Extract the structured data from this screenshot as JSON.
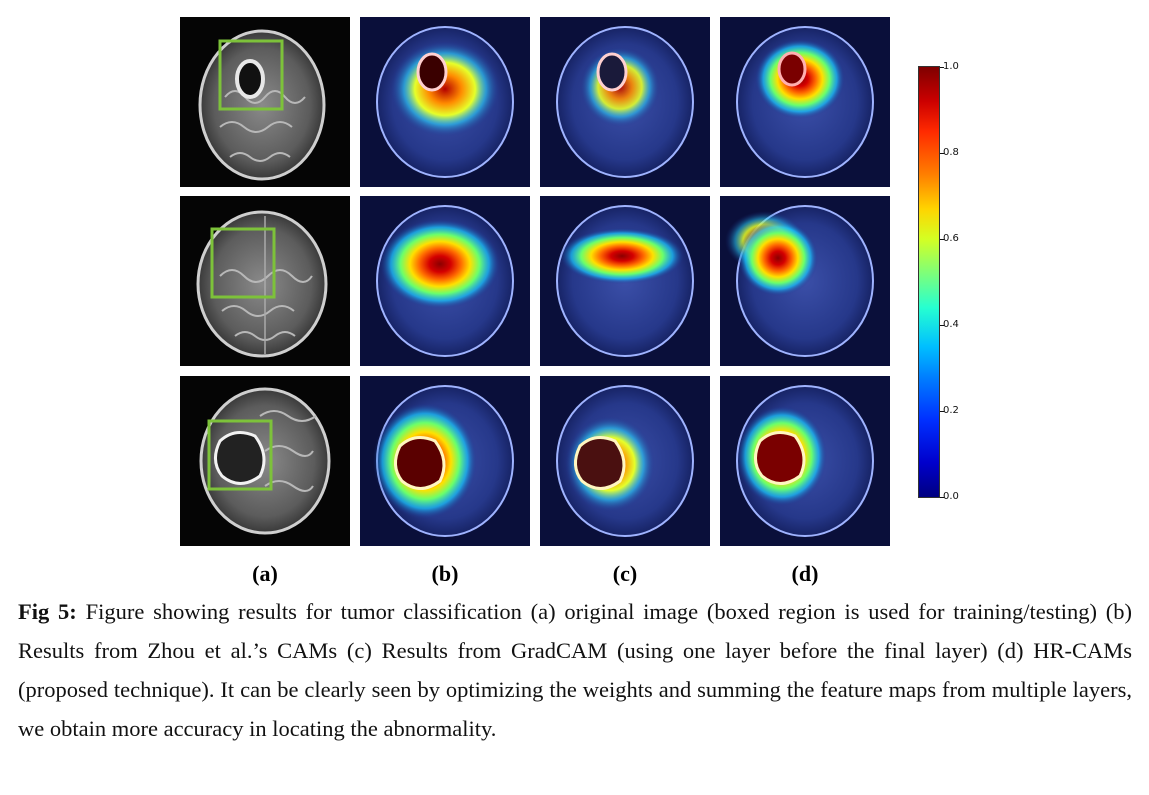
{
  "figure": {
    "column_labels": [
      "(a)",
      "(b)",
      "(c)",
      "(d)"
    ],
    "colorbar": {
      "ticks": [
        "1.0",
        "0.8",
        "0.6",
        "0.4",
        "0.2",
        "0.0"
      ],
      "colormap": "jet",
      "range": [
        0.0,
        1.0
      ]
    },
    "box_color": "#7dc23a"
  },
  "caption": {
    "label": "Fig 5:",
    "text": "Figure showing results for tumor classification (a) original image (boxed region is used for training/testing) (b) Results from Zhou et al.’s CAMs (c) Results from GradCAM (using one layer before the final layer) (d) HR-CAMs (proposed technique). It can be clearly seen by optimizing the weights and summing the feature maps from multiple layers, we obtain more accuracy in locating the abnormality."
  }
}
